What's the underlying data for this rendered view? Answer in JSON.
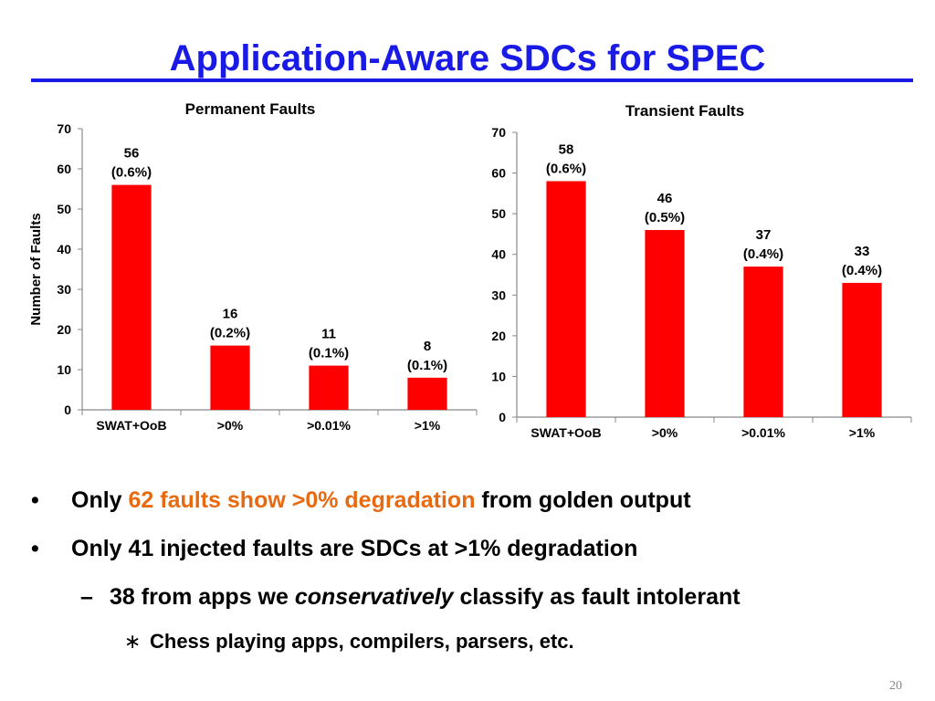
{
  "slide": {
    "title": "Application-Aware SDCs for SPEC",
    "page_number": "20"
  },
  "chart_data": [
    {
      "type": "bar",
      "title": "Permanent Faults",
      "ylabel": "Number of Faults",
      "categories": [
        "SWAT+OoB",
        ">0%",
        ">0.01%",
        ">1%"
      ],
      "values": [
        56,
        16,
        11,
        8
      ],
      "value_labels": [
        "56",
        "16",
        "11",
        "8"
      ],
      "percent_labels": [
        "(0.6%)",
        "(0.2%)",
        "(0.1%)",
        "(0.1%)"
      ],
      "ylim": [
        0,
        70
      ],
      "yticks": [
        "0",
        "10",
        "20",
        "30",
        "40",
        "50",
        "60",
        "70"
      ],
      "bar_color": "#ff0000",
      "grid": false
    },
    {
      "type": "bar",
      "title": "Transient Faults",
      "ylabel": "",
      "categories": [
        "SWAT+OoB",
        ">0%",
        ">0.01%",
        ">1%"
      ],
      "values": [
        58,
        46,
        37,
        33
      ],
      "value_labels": [
        "58",
        "46",
        "37",
        "33"
      ],
      "percent_labels": [
        "(0.6%)",
        "(0.5%)",
        "(0.4%)",
        "(0.4%)"
      ],
      "ylim": [
        0,
        70
      ],
      "yticks": [
        "0",
        "10",
        "20",
        "30",
        "40",
        "50",
        "60",
        "70"
      ],
      "bar_color": "#ff0000",
      "grid": false
    }
  ],
  "bullets": {
    "b1_prefix": "Only ",
    "b1_highlight": "62 faults show >0% degradation",
    "b1_suffix": " from golden output",
    "b2": "Only 41 injected faults are SDCs at >1% degradation",
    "b3_prefix": "38 from apps we ",
    "b3_emph": "conservatively",
    "b3_suffix": " classify as fault intolerant",
    "b4": "Chess playing apps, compilers, parsers, etc.",
    "marker_l1": "•",
    "marker_l2": "–",
    "marker_l3": "∗",
    "highlight_color": "#e86a10"
  }
}
